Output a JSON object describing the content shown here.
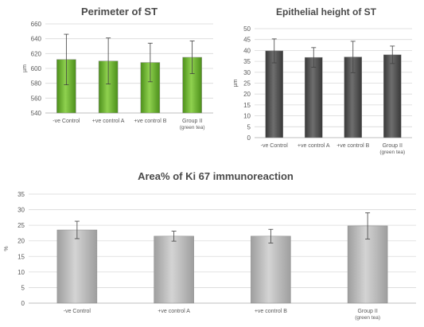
{
  "chart_data": [
    {
      "type": "bar",
      "title": "Perimeter of ST",
      "ylabel": "µm",
      "ylim": [
        540,
        660
      ],
      "yticks": [
        "540",
        "560",
        "580",
        "600",
        "620",
        "640",
        "660"
      ],
      "categories": [
        "-ve Control",
        "+ve control A",
        "+ve control B",
        "Group II"
      ],
      "category_sublabels": [
        "",
        "",
        "",
        "(green tea)"
      ],
      "values": [
        612,
        610,
        608,
        615
      ],
      "errors": [
        34,
        31,
        26,
        22
      ],
      "grid": true,
      "bar_color": "#6aae2e"
    },
    {
      "type": "bar",
      "title": "Epithelial  height of ST",
      "ylabel": "µm",
      "ylim": [
        0,
        50
      ],
      "yticks": [
        "0",
        "5",
        "10",
        "15",
        "20",
        "25",
        "30",
        "35",
        "40",
        "45",
        "50"
      ],
      "categories": [
        "-ve Control",
        "+ve control A",
        "+ve control B",
        "Group II"
      ],
      "category_sublabels": [
        "",
        "",
        "",
        "(green tea)"
      ],
      "values": [
        39.8,
        36.8,
        37,
        38
      ],
      "errors": [
        5.5,
        4.5,
        7.2,
        4
      ],
      "grid": true,
      "bar_color": "#4d4d4d"
    },
    {
      "type": "bar",
      "title": "Area%  of Ki 67 immunoreaction",
      "ylabel": "%",
      "ylim": [
        0,
        35
      ],
      "yticks": [
        "0",
        "5",
        "10",
        "15",
        "20",
        "25",
        "30",
        "35"
      ],
      "categories": [
        "-ve Control",
        "+ve control A",
        "+ve control B",
        "Group II"
      ],
      "category_sublabels": [
        "",
        "",
        "",
        "(green tea)"
      ],
      "values": [
        23.5,
        21.5,
        21.5,
        24.8
      ],
      "errors": [
        2.8,
        1.6,
        2.2,
        4.2
      ],
      "grid": true,
      "bar_color": "#bdbdbd"
    }
  ]
}
